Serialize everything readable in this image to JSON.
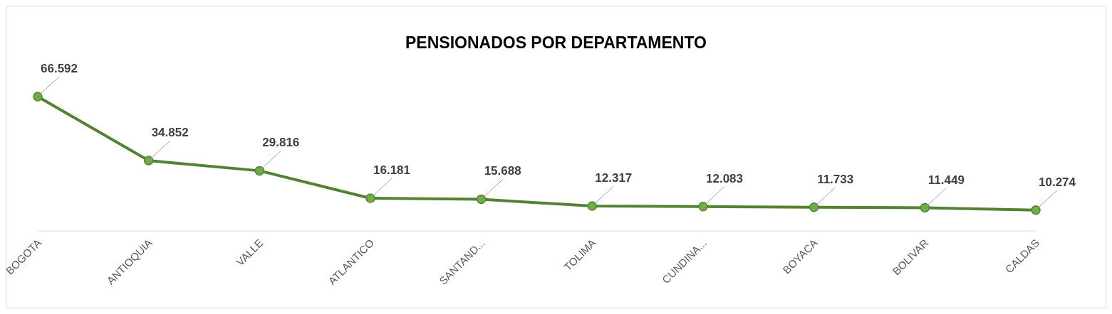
{
  "chart_data": {
    "type": "line",
    "title": "PENSIONADOS POR DEPARTAMENTO",
    "categories": [
      "BOGOTA",
      "ANTIOQUIA",
      "VALLE",
      "ATLANTICO",
      "SANTAND...",
      "TOLIMA",
      "CUNDINA...",
      "BOYACA",
      "BOLIVAR",
      "CALDAS"
    ],
    "series": [
      {
        "color": "#548235",
        "values": [
          66592,
          34852,
          29816,
          16181,
          15688,
          12317,
          12083,
          11733,
          11449,
          10274
        ],
        "value_labels": [
          "66.592",
          "34.852",
          "29.816",
          "16.181",
          "15.688",
          "12.317",
          "12.083",
          "11.733",
          "11.449",
          "10.274"
        ]
      }
    ],
    "marker": "circle",
    "line_style": "solid"
  }
}
